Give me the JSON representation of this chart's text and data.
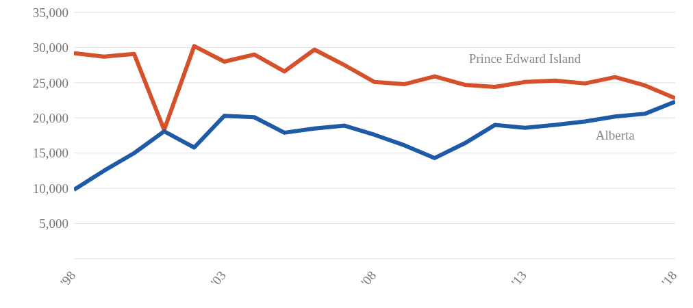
{
  "chart_data": {
    "type": "line",
    "x": [
      1998,
      1999,
      2000,
      2001,
      2002,
      2003,
      2004,
      2005,
      2006,
      2007,
      2008,
      2009,
      2010,
      2011,
      2012,
      2013,
      2014,
      2015,
      2016,
      2017,
      2018
    ],
    "series": [
      {
        "name": "Prince Edward Island",
        "color": "#d4512b",
        "values": [
          29200,
          28700,
          29100,
          18300,
          30200,
          28000,
          29000,
          26600,
          29700,
          27500,
          25100,
          24800,
          25900,
          24700,
          24400,
          25100,
          25300,
          24900,
          25800,
          24600,
          22800
        ]
      },
      {
        "name": "Alberta",
        "color": "#1f5aa6",
        "values": [
          9800,
          12500,
          15000,
          18100,
          15800,
          20300,
          20100,
          17900,
          18500,
          18900,
          17600,
          16100,
          14300,
          16400,
          19000,
          18600,
          19000,
          19500,
          20200,
          20600,
          22300
        ]
      }
    ],
    "xlim": [
      1998,
      2018
    ],
    "xticks": [
      {
        "value": 1998,
        "label": "'98"
      },
      {
        "value": 2003,
        "label": "'03"
      },
      {
        "value": 2008,
        "label": "'08"
      },
      {
        "value": 2013,
        "label": "'13"
      },
      {
        "value": 2018,
        "label": "'18"
      }
    ],
    "ylim": [
      0,
      35000
    ],
    "yticks": [
      {
        "value": 5000,
        "label": "5,000"
      },
      {
        "value": 10000,
        "label": "10,000"
      },
      {
        "value": 15000,
        "label": "15,000"
      },
      {
        "value": 20000,
        "label": "20,000"
      },
      {
        "value": 25000,
        "label": "25,000"
      },
      {
        "value": 30000,
        "label": "30,000"
      },
      {
        "value": 35000,
        "label": "35,000"
      }
    ],
    "grid": "y",
    "marker": "none",
    "line_style": "solid"
  }
}
